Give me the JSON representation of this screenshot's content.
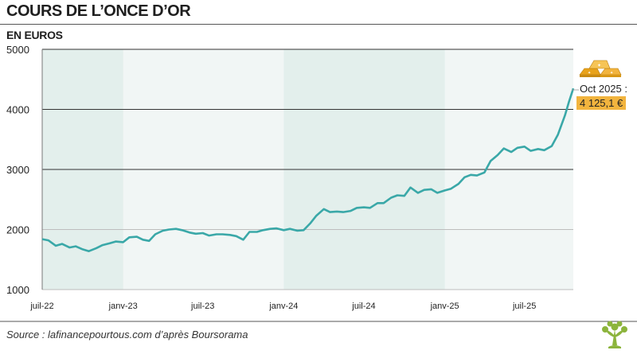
{
  "title": "COURS DE L’ONCE D’OR",
  "subtitle": "EN EUROS",
  "source": "Source : lafinancepourtous.com d’après Boursorama",
  "callout": {
    "date": "Oct 2025 :",
    "value": "4 125,1 €"
  },
  "colors": {
    "line": "#3aa8a8",
    "band": "#e3efec",
    "plot_bg": "#f1f6f5",
    "callout": "#f2b43e",
    "logo": "#8cb43c"
  },
  "icons": {
    "gold": "gold-bars-icon",
    "logo": "tree-logo-icon"
  },
  "chart_data": {
    "type": "line",
    "title": "COURS DE L’ONCE D’OR",
    "ylabel": "EN EUROS",
    "xlabel": "",
    "ylim": [
      1000,
      5000
    ],
    "yticks": [
      "1000",
      "2000",
      "3000",
      "4000",
      "5000"
    ],
    "xticks": [
      "juil-22",
      "janv-23",
      "juil-23",
      "janv-24",
      "juil-24",
      "janv-25",
      "juil-25"
    ],
    "xlim": [
      "2022-07-01",
      "2025-10-20"
    ],
    "grid": "horizontal",
    "legend": "none",
    "series": [
      {
        "name": "",
        "x": [
          "2022-07-01",
          "2022-07-15",
          "2022-08-01",
          "2022-08-15",
          "2022-09-01",
          "2022-09-15",
          "2022-10-01",
          "2022-10-15",
          "2022-11-01",
          "2022-11-15",
          "2022-12-01",
          "2022-12-15",
          "2023-01-01",
          "2023-01-15",
          "2023-02-01",
          "2023-02-15",
          "2023-03-01",
          "2023-03-15",
          "2023-04-01",
          "2023-04-15",
          "2023-05-01",
          "2023-05-15",
          "2023-06-01",
          "2023-06-15",
          "2023-07-01",
          "2023-07-15",
          "2023-08-01",
          "2023-08-15",
          "2023-09-01",
          "2023-09-15",
          "2023-10-01",
          "2023-10-15",
          "2023-11-01",
          "2023-11-15",
          "2023-12-01",
          "2023-12-15",
          "2024-01-01",
          "2024-01-15",
          "2024-02-01",
          "2024-02-15",
          "2024-03-01",
          "2024-03-15",
          "2024-04-01",
          "2024-04-15",
          "2024-05-01",
          "2024-05-15",
          "2024-06-01",
          "2024-06-15",
          "2024-07-01",
          "2024-07-15",
          "2024-08-01",
          "2024-08-15",
          "2024-09-01",
          "2024-09-15",
          "2024-10-01",
          "2024-10-15",
          "2024-11-01",
          "2024-11-15",
          "2024-12-01",
          "2024-12-15",
          "2025-01-01",
          "2025-01-15",
          "2025-02-01",
          "2025-02-15",
          "2025-03-01",
          "2025-03-15",
          "2025-04-01",
          "2025-04-15",
          "2025-05-01",
          "2025-05-15",
          "2025-06-01",
          "2025-06-15",
          "2025-07-01",
          "2025-07-15",
          "2025-08-01",
          "2025-08-15",
          "2025-09-01",
          "2025-09-15",
          "2025-10-01",
          "2025-10-10",
          "2025-10-20"
        ],
        "values": [
          1840,
          1820,
          1730,
          1760,
          1700,
          1720,
          1670,
          1640,
          1690,
          1740,
          1770,
          1800,
          1790,
          1870,
          1880,
          1830,
          1810,
          1920,
          1980,
          2000,
          2010,
          1990,
          1950,
          1930,
          1940,
          1900,
          1920,
          1920,
          1910,
          1890,
          1830,
          1960,
          1960,
          1990,
          2010,
          2020,
          1990,
          2010,
          1980,
          1990,
          2100,
          2230,
          2340,
          2290,
          2300,
          2290,
          2310,
          2360,
          2370,
          2360,
          2440,
          2440,
          2530,
          2570,
          2560,
          2700,
          2610,
          2660,
          2670,
          2610,
          2650,
          2680,
          2760,
          2870,
          2910,
          2900,
          2950,
          3140,
          3240,
          3350,
          3290,
          3360,
          3380,
          3310,
          3340,
          3320,
          3390,
          3580,
          3900,
          4125,
          4350
        ]
      }
    ]
  }
}
